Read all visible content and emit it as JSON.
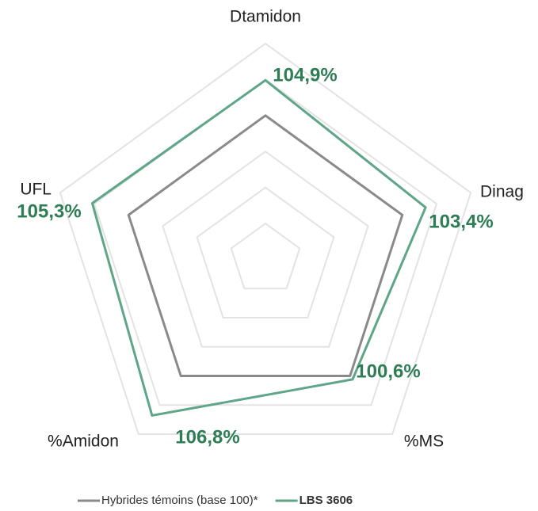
{
  "chart_data": {
    "type": "radar",
    "categories": [
      "Dtamidon",
      "Dinag",
      "%MS",
      "%Amidon",
      "UFL"
    ],
    "ylim": [
      80,
      110
    ],
    "yticks": [
      85,
      90,
      95,
      100,
      105,
      110
    ],
    "grid": true,
    "series": [
      {
        "name": "Hybrides témoins (base 100)*",
        "color": "#8a8a8a",
        "values": [
          100,
          100,
          100,
          100,
          100
        ]
      },
      {
        "name": "LBS 3606",
        "color": "#5fa587",
        "label_color": "#2e7d55",
        "values": [
          104.9,
          103.4,
          100.6,
          106.8,
          105.3
        ],
        "value_labels": [
          "104,9%",
          "103,4%",
          "100,6%",
          "106,8%",
          "105,3%"
        ]
      }
    ],
    "legend": "bottom"
  }
}
